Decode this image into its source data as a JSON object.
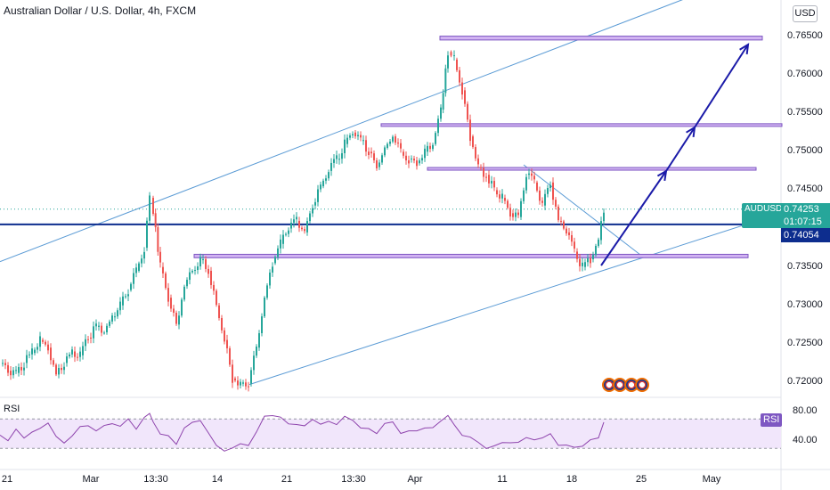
{
  "header": {
    "title": "Australian Dollar / U.S. Dollar, 4h, FXCM",
    "currency_button": "USD"
  },
  "price_scale": {
    "ticks": [
      "0.76500",
      "0.76000",
      "0.75500",
      "0.75000",
      "0.74500",
      "0.73500",
      "0.73000",
      "0.72500",
      "0.72000"
    ]
  },
  "rsi_scale": {
    "ticks": [
      "80.00",
      "40.00"
    ]
  },
  "time_axis": {
    "ticks": [
      "21",
      "Mar",
      "13:30",
      "14",
      "21",
      "13:30",
      "Apr",
      "11",
      "18",
      "25",
      "May"
    ]
  },
  "badges": {
    "symbol": "AUDUSD",
    "countdown": "01:07:15",
    "last_price": "0.74253",
    "level_price": "0.74054",
    "rsi_label": "RSI",
    "rsi_value_badge": "RSI"
  },
  "colors": {
    "up": "#26a69a",
    "down": "#ef5350",
    "channel": "#5b9bd5",
    "zone_fill": "#d1b3f2",
    "zone_border": "#7e57c2",
    "support_line": "#0d2d8e",
    "arrows": "#1a1aa8",
    "rsi_line": "#8e44ad",
    "rsi_band": "#f1e6fb"
  },
  "chart_data": {
    "type": "candlestick",
    "symbol": "AUDUSD",
    "timeframe": "4h",
    "source": "FXCM",
    "ylim": [
      0.719,
      0.7665
    ],
    "last_price": 0.74253,
    "horizontal_level": 0.74054,
    "path_points": [
      [
        0,
        0.7225
      ],
      [
        9,
        0.7215
      ],
      [
        18,
        0.7212
      ],
      [
        27,
        0.7225
      ],
      [
        36,
        0.7238
      ],
      [
        45,
        0.7255
      ],
      [
        54,
        0.7245
      ],
      [
        63,
        0.721
      ],
      [
        72,
        0.7225
      ],
      [
        81,
        0.724
      ],
      [
        90,
        0.7235
      ],
      [
        99,
        0.7258
      ],
      [
        108,
        0.7272
      ],
      [
        117,
        0.7265
      ],
      [
        126,
        0.7285
      ],
      [
        135,
        0.73
      ],
      [
        144,
        0.732
      ],
      [
        153,
        0.7345
      ],
      [
        162,
        0.7375
      ],
      [
        168,
        0.744
      ],
      [
        172,
        0.742
      ],
      [
        180,
        0.735
      ],
      [
        189,
        0.731
      ],
      [
        198,
        0.7275
      ],
      [
        207,
        0.7325
      ],
      [
        216,
        0.7345
      ],
      [
        225,
        0.736
      ],
      [
        234,
        0.7345
      ],
      [
        243,
        0.73
      ],
      [
        252,
        0.7255
      ],
      [
        261,
        0.7205
      ],
      [
        270,
        0.7198
      ],
      [
        279,
        0.7198
      ],
      [
        288,
        0.7245
      ],
      [
        297,
        0.731
      ],
      [
        306,
        0.7355
      ],
      [
        315,
        0.738
      ],
      [
        324,
        0.74
      ],
      [
        333,
        0.741
      ],
      [
        342,
        0.7395
      ],
      [
        351,
        0.743
      ],
      [
        360,
        0.7455
      ],
      [
        369,
        0.7475
      ],
      [
        378,
        0.749
      ],
      [
        387,
        0.751
      ],
      [
        396,
        0.7525
      ],
      [
        405,
        0.7515
      ],
      [
        414,
        0.75
      ],
      [
        423,
        0.748
      ],
      [
        432,
        0.7505
      ],
      [
        441,
        0.752
      ],
      [
        450,
        0.75
      ],
      [
        459,
        0.749
      ],
      [
        468,
        0.7485
      ],
      [
        477,
        0.75
      ],
      [
        486,
        0.751
      ],
      [
        495,
        0.7555
      ],
      [
        503,
        0.763
      ],
      [
        510,
        0.762
      ],
      [
        519,
        0.758
      ],
      [
        528,
        0.752
      ],
      [
        537,
        0.748
      ],
      [
        546,
        0.747
      ],
      [
        555,
        0.745
      ],
      [
        564,
        0.744
      ],
      [
        573,
        0.742
      ],
      [
        582,
        0.7415
      ],
      [
        591,
        0.747
      ],
      [
        600,
        0.746
      ],
      [
        609,
        0.743
      ],
      [
        618,
        0.746
      ],
      [
        627,
        0.741
      ],
      [
        636,
        0.7395
      ],
      [
        645,
        0.737
      ],
      [
        654,
        0.735
      ],
      [
        663,
        0.736
      ],
      [
        672,
        0.7385
      ],
      [
        678,
        0.7425
      ]
    ],
    "rsi": {
      "levels": [
        70,
        30
      ],
      "values": [
        [
          0,
          48
        ],
        [
          9,
          40
        ],
        [
          18,
          52
        ],
        [
          27,
          45
        ],
        [
          36,
          58
        ],
        [
          45,
          55
        ],
        [
          54,
          60
        ],
        [
          63,
          42
        ],
        [
          72,
          38
        ],
        [
          81,
          50
        ],
        [
          90,
          55
        ],
        [
          99,
          60
        ],
        [
          108,
          58
        ],
        [
          117,
          62
        ],
        [
          126,
          65
        ],
        [
          135,
          60
        ],
        [
          144,
          66
        ],
        [
          153,
          62
        ],
        [
          162,
          75
        ],
        [
          168,
          78
        ],
        [
          172,
          65
        ],
        [
          180,
          48
        ],
        [
          189,
          45
        ],
        [
          198,
          40
        ],
        [
          207,
          58
        ],
        [
          216,
          60
        ],
        [
          225,
          62
        ],
        [
          234,
          52
        ],
        [
          243,
          40
        ],
        [
          252,
          32
        ],
        [
          261,
          28
        ],
        [
          270,
          34
        ],
        [
          279,
          38
        ],
        [
          288,
          55
        ],
        [
          297,
          70
        ],
        [
          306,
          72
        ],
        [
          315,
          68
        ],
        [
          324,
          64
        ],
        [
          333,
          66
        ],
        [
          342,
          58
        ],
        [
          351,
          64
        ],
        [
          360,
          66
        ],
        [
          369,
          70
        ],
        [
          378,
          66
        ],
        [
          387,
          68
        ],
        [
          396,
          65
        ],
        [
          405,
          60
        ],
        [
          414,
          58
        ],
        [
          423,
          50
        ],
        [
          432,
          62
        ],
        [
          441,
          64
        ],
        [
          450,
          56
        ],
        [
          459,
          54
        ],
        [
          468,
          50
        ],
        [
          477,
          56
        ],
        [
          486,
          60
        ],
        [
          495,
          72
        ],
        [
          503,
          80
        ],
        [
          510,
          66
        ],
        [
          519,
          50
        ],
        [
          528,
          40
        ],
        [
          537,
          36
        ],
        [
          546,
          35
        ],
        [
          555,
          34
        ],
        [
          564,
          36
        ],
        [
          573,
          34
        ],
        [
          582,
          35
        ],
        [
          591,
          50
        ],
        [
          600,
          46
        ],
        [
          609,
          40
        ],
        [
          618,
          48
        ],
        [
          627,
          38
        ],
        [
          636,
          36
        ],
        [
          645,
          34
        ],
        [
          654,
          32
        ],
        [
          663,
          38
        ],
        [
          672,
          50
        ],
        [
          678,
          60
        ]
      ]
    }
  }
}
